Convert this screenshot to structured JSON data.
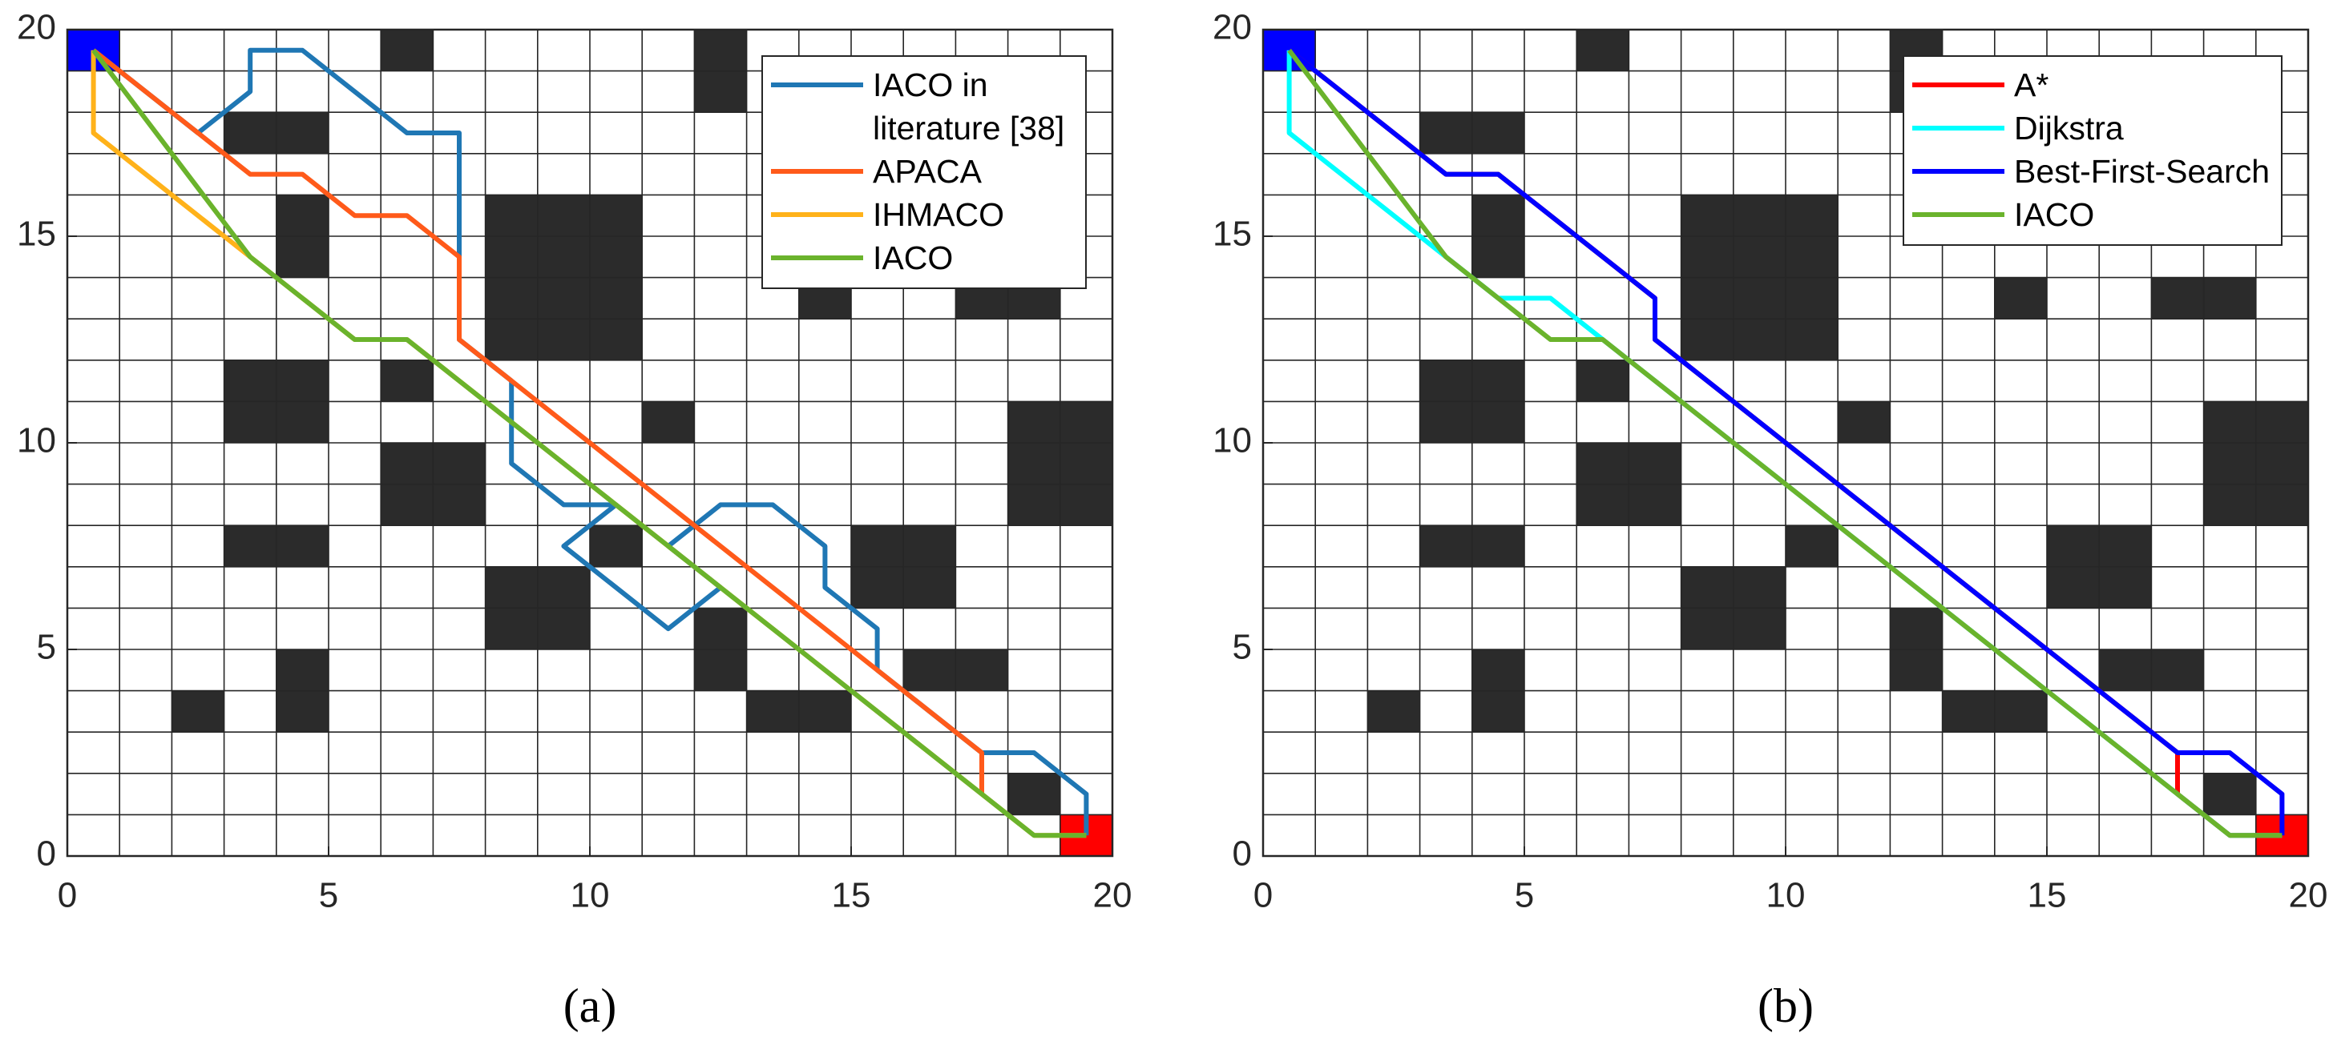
{
  "chart_data": [
    {
      "type": "line",
      "caption": "(a)",
      "xlim": [
        0,
        20
      ],
      "ylim": [
        0,
        20
      ],
      "xticks": [
        0,
        5,
        10,
        15,
        20
      ],
      "yticks": [
        0,
        5,
        10,
        15,
        20
      ],
      "xgrid": [
        0,
        1,
        2,
        3,
        4,
        5,
        6,
        7,
        8,
        9,
        10,
        11,
        12,
        13,
        14,
        15,
        16,
        17,
        18,
        19,
        20
      ],
      "ygrid": [
        0,
        1,
        2,
        3,
        4,
        5,
        6,
        7,
        8,
        9,
        10,
        11,
        12,
        13,
        14,
        15,
        16,
        17,
        18,
        19,
        20
      ],
      "legend": "upper right",
      "start": [
        0,
        19
      ],
      "start_color": "#0000ff",
      "goal": [
        19,
        0
      ],
      "goal_color": "#ff0000",
      "obstacle_color": "#2b2b2b",
      "obstacles": [
        [
          6,
          19
        ],
        [
          12,
          19
        ],
        [
          12,
          18
        ],
        [
          3,
          17
        ],
        [
          4,
          17
        ],
        [
          4,
          15
        ],
        [
          4,
          14
        ],
        [
          8,
          15
        ],
        [
          9,
          15
        ],
        [
          10,
          15
        ],
        [
          8,
          14
        ],
        [
          9,
          14
        ],
        [
          10,
          14
        ],
        [
          8,
          13
        ],
        [
          9,
          13
        ],
        [
          10,
          13
        ],
        [
          8,
          12
        ],
        [
          9,
          12
        ],
        [
          10,
          12
        ],
        [
          14,
          13
        ],
        [
          17,
          13
        ],
        [
          18,
          13
        ],
        [
          3,
          11
        ],
        [
          4,
          11
        ],
        [
          3,
          10
        ],
        [
          4,
          10
        ],
        [
          6,
          11
        ],
        [
          11,
          10
        ],
        [
          18,
          10
        ],
        [
          19,
          10
        ],
        [
          18,
          9
        ],
        [
          19,
          9
        ],
        [
          18,
          8
        ],
        [
          19,
          8
        ],
        [
          6,
          9
        ],
        [
          7,
          9
        ],
        [
          6,
          8
        ],
        [
          7,
          8
        ],
        [
          3,
          7
        ],
        [
          4,
          7
        ],
        [
          10,
          7
        ],
        [
          15,
          7
        ],
        [
          16,
          7
        ],
        [
          15,
          6
        ],
        [
          16,
          6
        ],
        [
          8,
          6
        ],
        [
          9,
          6
        ],
        [
          8,
          5
        ],
        [
          9,
          5
        ],
        [
          12,
          5
        ],
        [
          12,
          4
        ],
        [
          4,
          4
        ],
        [
          4,
          3
        ],
        [
          16,
          4
        ],
        [
          17,
          4
        ],
        [
          2,
          3
        ],
        [
          13,
          3
        ],
        [
          14,
          3
        ],
        [
          18,
          1
        ]
      ],
      "series": [
        {
          "name": "IACO in literature [38]",
          "color": "#1f77b4",
          "x": [
            0.5,
            2.5,
            3.5,
            3.5,
            4.5,
            6.5,
            7.5,
            7.5,
            8.5,
            8.5,
            9.5,
            10.5,
            9.5,
            11.5,
            12.5,
            11.5,
            12.5,
            13.5,
            14.5,
            14.5,
            15.5,
            15.5,
            17.5,
            18.5,
            19.5,
            19.5
          ],
          "values": [
            19.5,
            17.5,
            18.5,
            19.5,
            19.5,
            17.5,
            17.5,
            12.5,
            11.5,
            9.5,
            8.5,
            8.5,
            7.5,
            5.5,
            6.5,
            7.5,
            8.5,
            8.5,
            7.5,
            6.5,
            5.5,
            4.5,
            2.5,
            2.5,
            1.5,
            0.5
          ]
        },
        {
          "name": "APACA",
          "color": "#ff5a1a",
          "x": [
            0.5,
            3.5,
            4.5,
            5.5,
            6.5,
            7.5,
            7.5,
            17.5,
            17.5
          ],
          "values": [
            19.5,
            16.5,
            16.5,
            15.5,
            15.5,
            14.5,
            12.5,
            2.5,
            1.5
          ]
        },
        {
          "name": "IHMACO",
          "color": "#ffb21a",
          "x": [
            0.5,
            0.5,
            3.5,
            5.5,
            6.5,
            18.5,
            19.5
          ],
          "values": [
            19.5,
            17.5,
            14.5,
            12.5,
            12.5,
            0.5,
            0.5
          ]
        },
        {
          "name": "IACO",
          "color": "#6ab32c",
          "x": [
            0.5,
            3.5,
            5.5,
            6.5,
            18.5,
            19.5
          ],
          "values": [
            19.5,
            14.5,
            12.5,
            12.5,
            0.5,
            0.5
          ]
        }
      ]
    },
    {
      "type": "line",
      "caption": "(b)",
      "xlim": [
        0,
        20
      ],
      "ylim": [
        0,
        20
      ],
      "xticks": [
        0,
        5,
        10,
        15,
        20
      ],
      "yticks": [
        0,
        5,
        10,
        15,
        20
      ],
      "xgrid": [
        0,
        1,
        2,
        3,
        4,
        5,
        6,
        7,
        8,
        9,
        10,
        11,
        12,
        13,
        14,
        15,
        16,
        17,
        18,
        19,
        20
      ],
      "ygrid": [
        0,
        1,
        2,
        3,
        4,
        5,
        6,
        7,
        8,
        9,
        10,
        11,
        12,
        13,
        14,
        15,
        16,
        17,
        18,
        19,
        20
      ],
      "legend": "upper right",
      "start": [
        0,
        19
      ],
      "start_color": "#0000ff",
      "goal": [
        19,
        0
      ],
      "goal_color": "#ff0000",
      "obstacle_color": "#2b2b2b",
      "obstacles": [
        [
          6,
          19
        ],
        [
          12,
          19
        ],
        [
          12,
          18
        ],
        [
          3,
          17
        ],
        [
          4,
          17
        ],
        [
          4,
          15
        ],
        [
          4,
          14
        ],
        [
          8,
          15
        ],
        [
          9,
          15
        ],
        [
          10,
          15
        ],
        [
          8,
          14
        ],
        [
          9,
          14
        ],
        [
          10,
          14
        ],
        [
          8,
          13
        ],
        [
          9,
          13
        ],
        [
          10,
          13
        ],
        [
          8,
          12
        ],
        [
          9,
          12
        ],
        [
          10,
          12
        ],
        [
          14,
          13
        ],
        [
          17,
          13
        ],
        [
          18,
          13
        ],
        [
          3,
          11
        ],
        [
          4,
          11
        ],
        [
          3,
          10
        ],
        [
          4,
          10
        ],
        [
          6,
          11
        ],
        [
          11,
          10
        ],
        [
          18,
          10
        ],
        [
          19,
          10
        ],
        [
          18,
          9
        ],
        [
          19,
          9
        ],
        [
          18,
          8
        ],
        [
          19,
          8
        ],
        [
          6,
          9
        ],
        [
          7,
          9
        ],
        [
          6,
          8
        ],
        [
          7,
          8
        ],
        [
          3,
          7
        ],
        [
          4,
          7
        ],
        [
          10,
          7
        ],
        [
          15,
          7
        ],
        [
          16,
          7
        ],
        [
          15,
          6
        ],
        [
          16,
          6
        ],
        [
          8,
          6
        ],
        [
          9,
          6
        ],
        [
          8,
          5
        ],
        [
          9,
          5
        ],
        [
          12,
          5
        ],
        [
          12,
          4
        ],
        [
          4,
          4
        ],
        [
          4,
          3
        ],
        [
          16,
          4
        ],
        [
          17,
          4
        ],
        [
          2,
          3
        ],
        [
          13,
          3
        ],
        [
          14,
          3
        ],
        [
          18,
          1
        ]
      ],
      "series": [
        {
          "name": "A*",
          "color": "#ff0000",
          "x": [
            0.5,
            3.5,
            4.5,
            7.5,
            7.5,
            17.5,
            17.5,
            18.5,
            19.5
          ],
          "values": [
            19.5,
            16.5,
            16.5,
            13.5,
            12.5,
            2.5,
            1.5,
            0.5,
            0.5
          ]
        },
        {
          "name": "Dijkstra",
          "color": "#00ffff",
          "x": [
            0.5,
            0.5,
            3.5,
            4.5,
            5.5,
            6.5,
            18.5,
            19.5
          ],
          "values": [
            19.5,
            17.5,
            14.5,
            13.5,
            13.5,
            12.5,
            0.5,
            0.5
          ]
        },
        {
          "name": "Best-First-Search",
          "color": "#0000ff",
          "x": [
            0.5,
            3.5,
            4.5,
            7.5,
            7.5,
            17.5,
            18.5,
            19.5,
            19.5
          ],
          "values": [
            19.5,
            16.5,
            16.5,
            13.5,
            12.5,
            2.5,
            2.5,
            1.5,
            0.5
          ]
        },
        {
          "name": "IACO",
          "color": "#6ab32c",
          "x": [
            0.5,
            3.5,
            5.5,
            6.5,
            18.5,
            19.5
          ],
          "values": [
            19.5,
            14.5,
            12.5,
            12.5,
            0.5,
            0.5
          ]
        }
      ]
    }
  ]
}
